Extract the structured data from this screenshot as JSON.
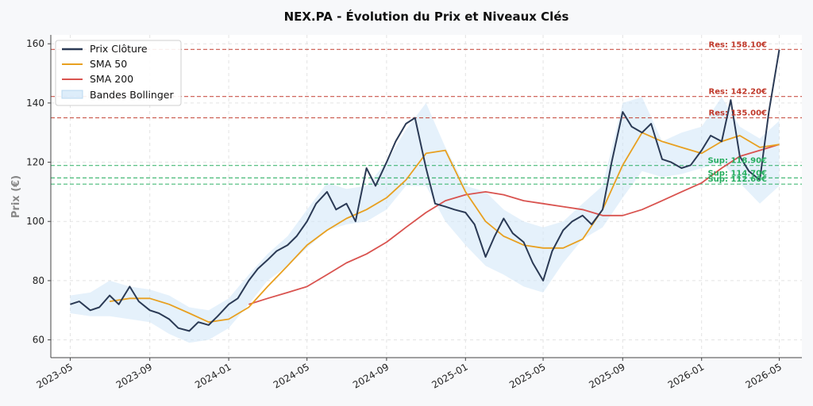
{
  "chart_data": {
    "type": "line",
    "title": "NEX.PA - Évolution du Prix et Niveaux Clés",
    "ylabel": "Prix (€)",
    "xlabel": "",
    "xlim": [
      "2023-04-01",
      "2026-06-05"
    ],
    "ylim": [
      54,
      163
    ],
    "grid": true,
    "legend_position": "top-left",
    "x_ticks": [
      "2023-05",
      "2023-09",
      "2024-01",
      "2024-05",
      "2024-09",
      "2025-01",
      "2025-05",
      "2025-09",
      "2026-01",
      "2026-05"
    ],
    "y_ticks": [
      60,
      80,
      100,
      120,
      140,
      160
    ],
    "colors": {
      "price": "#2b3a55",
      "sma50": "#e8a020",
      "sma200": "#d9534f",
      "bollinger": "#cfe6f8",
      "resistance": "#c0392b",
      "support": "#27ae60"
    },
    "legend": [
      "Prix Clôture",
      "SMA 50",
      "SMA 200",
      "Bandes Bollinger"
    ],
    "levels": [
      {
        "kind": "resistance",
        "value": 158.1,
        "label": "Res: 158.10€"
      },
      {
        "kind": "resistance",
        "value": 142.2,
        "label": "Res: 142.20€"
      },
      {
        "kind": "resistance",
        "value": 135.0,
        "label": "Res: 135.00€"
      },
      {
        "kind": "support",
        "value": 118.9,
        "label": "Sup: 118.90€"
      },
      {
        "kind": "support",
        "value": 114.7,
        "label": "Sup: 114.70€"
      },
      {
        "kind": "support",
        "value": 112.6,
        "label": "Sup: 112.60€"
      }
    ],
    "series": [
      {
        "name": "Prix Clôture",
        "x": [
          "2023-05-01",
          "2023-05-15",
          "2023-06-01",
          "2023-06-15",
          "2023-07-01",
          "2023-07-15",
          "2023-08-01",
          "2023-08-15",
          "2023-09-01",
          "2023-09-15",
          "2023-10-01",
          "2023-10-15",
          "2023-11-01",
          "2023-11-15",
          "2023-12-01",
          "2023-12-15",
          "2024-01-01",
          "2024-01-15",
          "2024-02-01",
          "2024-02-15",
          "2024-03-01",
          "2024-03-15",
          "2024-04-01",
          "2024-04-15",
          "2024-05-01",
          "2024-05-15",
          "2024-06-01",
          "2024-06-15",
          "2024-07-01",
          "2024-07-15",
          "2024-08-01",
          "2024-08-15",
          "2024-09-01",
          "2024-09-15",
          "2024-10-01",
          "2024-10-15",
          "2024-11-01",
          "2024-11-15",
          "2024-12-01",
          "2024-12-15",
          "2025-01-01",
          "2025-01-15",
          "2025-02-01",
          "2025-02-15",
          "2025-03-01",
          "2025-03-15",
          "2025-04-01",
          "2025-04-15",
          "2025-05-01",
          "2025-05-15",
          "2025-06-01",
          "2025-06-15",
          "2025-07-01",
          "2025-07-15",
          "2025-08-01",
          "2025-08-15",
          "2025-09-01",
          "2025-09-15",
          "2025-10-01",
          "2025-10-15",
          "2025-11-01",
          "2025-11-15",
          "2025-12-01",
          "2025-12-15",
          "2026-01-01",
          "2026-01-15",
          "2026-02-01",
          "2026-02-15",
          "2026-03-01",
          "2026-03-15",
          "2026-04-01",
          "2026-04-15",
          "2026-05-01"
        ],
        "values": [
          72,
          73,
          70,
          71,
          75,
          72,
          78,
          73,
          70,
          69,
          67,
          64,
          63,
          66,
          65,
          68,
          72,
          74,
          80,
          84,
          87,
          90,
          92,
          95,
          100,
          106,
          110,
          104,
          106,
          100,
          118,
          112,
          120,
          127,
          133,
          135,
          118,
          106,
          105,
          104,
          103,
          99,
          88,
          95,
          101,
          96,
          93,
          86,
          80,
          90,
          97,
          100,
          102,
          99,
          104,
          120,
          137,
          132,
          130,
          133,
          121,
          120,
          118,
          119,
          124,
          129,
          127,
          141,
          122,
          117,
          114,
          137,
          158
        ]
      },
      {
        "name": "SMA 50",
        "x": [
          "2023-07-01",
          "2023-08-01",
          "2023-09-01",
          "2023-10-01",
          "2023-11-01",
          "2023-12-01",
          "2024-01-01",
          "2024-02-01",
          "2024-03-01",
          "2024-04-01",
          "2024-05-01",
          "2024-06-01",
          "2024-07-01",
          "2024-08-01",
          "2024-09-01",
          "2024-10-01",
          "2024-11-01",
          "2024-12-01",
          "2025-01-01",
          "2025-02-01",
          "2025-03-01",
          "2025-04-01",
          "2025-05-01",
          "2025-06-01",
          "2025-07-01",
          "2025-08-01",
          "2025-09-01",
          "2025-10-01",
          "2025-11-01",
          "2025-12-01",
          "2026-01-01",
          "2026-02-01",
          "2026-03-01",
          "2026-04-01",
          "2026-05-01"
        ],
        "values": [
          73,
          74,
          74,
          72,
          69,
          66,
          67,
          71,
          78,
          85,
          92,
          97,
          101,
          104,
          108,
          114,
          123,
          124,
          110,
          100,
          95,
          92,
          91,
          91,
          94,
          104,
          119,
          130,
          127,
          125,
          123,
          127,
          129,
          125,
          126
        ]
      },
      {
        "name": "SMA 200",
        "x": [
          "2024-02-01",
          "2024-03-01",
          "2024-04-01",
          "2024-05-01",
          "2024-06-01",
          "2024-07-01",
          "2024-08-01",
          "2024-09-01",
          "2024-10-01",
          "2024-11-01",
          "2024-12-01",
          "2025-01-01",
          "2025-02-01",
          "2025-03-01",
          "2025-04-01",
          "2025-05-01",
          "2025-06-01",
          "2025-07-01",
          "2025-08-01",
          "2025-09-01",
          "2025-10-01",
          "2025-11-01",
          "2025-12-01",
          "2026-01-01",
          "2026-02-01",
          "2026-03-01",
          "2026-04-01",
          "2026-05-01"
        ],
        "values": [
          72,
          74,
          76,
          78,
          82,
          86,
          89,
          93,
          98,
          103,
          107,
          109,
          110,
          109,
          107,
          106,
          105,
          104,
          102,
          102,
          104,
          107,
          110,
          113,
          118,
          122,
          124,
          126
        ]
      },
      {
        "name": "Bandes Bollinger",
        "x": [
          "2023-05-01",
          "2023-06-01",
          "2023-07-01",
          "2023-08-01",
          "2023-09-01",
          "2023-10-01",
          "2023-11-01",
          "2023-12-01",
          "2024-01-01",
          "2024-02-01",
          "2024-03-01",
          "2024-04-01",
          "2024-05-01",
          "2024-06-01",
          "2024-07-01",
          "2024-08-01",
          "2024-09-01",
          "2024-10-01",
          "2024-11-01",
          "2024-12-01",
          "2025-01-01",
          "2025-02-01",
          "2025-03-01",
          "2025-04-01",
          "2025-05-01",
          "2025-06-01",
          "2025-07-01",
          "2025-08-01",
          "2025-09-01",
          "2025-10-01",
          "2025-11-01",
          "2025-12-01",
          "2026-01-01",
          "2026-02-01",
          "2026-03-01",
          "2026-04-01",
          "2026-05-01"
        ],
        "upper": [
          75,
          76,
          80,
          78,
          77,
          75,
          71,
          70,
          74,
          82,
          89,
          95,
          104,
          113,
          111,
          112,
          120,
          131,
          140,
          125,
          112,
          110,
          104,
          100,
          98,
          100,
          106,
          112,
          140,
          142,
          127,
          130,
          132,
          142,
          132,
          128,
          134
        ],
        "lower": [
          69,
          68,
          68,
          67,
          66,
          62,
          59,
          60,
          64,
          72,
          80,
          85,
          91,
          97,
          99,
          100,
          104,
          112,
          112,
          100,
          92,
          85,
          82,
          78,
          76,
          86,
          94,
          98,
          108,
          117,
          115,
          116,
          118,
          120,
          113,
          106,
          112
        ]
      }
    ]
  }
}
